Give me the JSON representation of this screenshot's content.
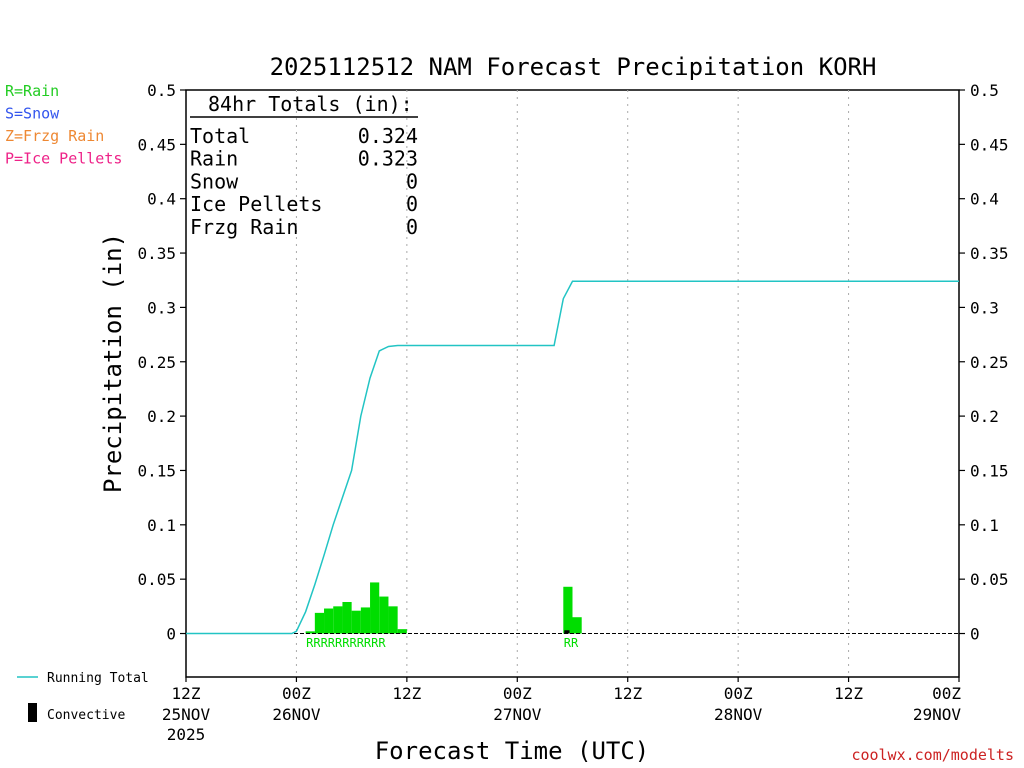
{
  "chart_data": {
    "type": "bar",
    "title": "2025112512 NAM Forecast Precipitation KORH",
    "xlabel": "Forecast Time (UTC)",
    "ylabel": "Precipitation (in)",
    "ylim": [
      -0.04,
      0.5
    ],
    "xlim_hours": [
      0,
      84
    ],
    "yticks": [
      "0",
      "0.05",
      "0.1",
      "0.15",
      "0.2",
      "0.25",
      "0.3",
      "0.35",
      "0.4",
      "0.45",
      "0.5"
    ],
    "yticks_values": [
      0,
      0.05,
      0.1,
      0.15,
      0.2,
      0.25,
      0.3,
      0.35,
      0.4,
      0.45,
      0.5
    ],
    "xticks": [
      {
        "hour": 0,
        "l1": "12Z",
        "l2": "25NOV",
        "l3": "2025"
      },
      {
        "hour": 12,
        "l1": "00Z",
        "l2": "26NOV",
        "l3": ""
      },
      {
        "hour": 24,
        "l1": "12Z",
        "l2": "",
        "l3": ""
      },
      {
        "hour": 36,
        "l1": "00Z",
        "l2": "27NOV",
        "l3": ""
      },
      {
        "hour": 48,
        "l1": "12Z",
        "l2": "",
        "l3": ""
      },
      {
        "hour": 60,
        "l1": "00Z",
        "l2": "28NOV",
        "l3": ""
      },
      {
        "hour": 72,
        "l1": "12Z",
        "l2": "",
        "l3": ""
      },
      {
        "hour": 84,
        "l1": "00Z",
        "l2": "29NOV",
        "l3": ""
      }
    ],
    "bars": [
      {
        "hour": 13,
        "value": 0.002,
        "convective": 0
      },
      {
        "hour": 14,
        "value": 0.019,
        "convective": 0
      },
      {
        "hour": 15,
        "value": 0.023,
        "convective": 0
      },
      {
        "hour": 16,
        "value": 0.025,
        "convective": 0
      },
      {
        "hour": 17,
        "value": 0.029,
        "convective": 0
      },
      {
        "hour": 18,
        "value": 0.021,
        "convective": 0
      },
      {
        "hour": 19,
        "value": 0.024,
        "convective": 0
      },
      {
        "hour": 20,
        "value": 0.047,
        "convective": 0
      },
      {
        "hour": 21,
        "value": 0.034,
        "convective": 0
      },
      {
        "hour": 22,
        "value": 0.025,
        "convective": 0
      },
      {
        "hour": 23,
        "value": 0.004,
        "convective": 0
      },
      {
        "hour": 41,
        "value": 0.043,
        "convective": 0.003
      },
      {
        "hour": 42,
        "value": 0.015,
        "convective": 0
      }
    ],
    "precip_type_labels": [
      {
        "hour": 13.5,
        "text": "RRRRRRRRRRR"
      },
      {
        "hour": 41.5,
        "text": "RR"
      }
    ],
    "running_total": {
      "name": "Running Total",
      "hours": [
        0,
        11.5,
        12,
        13,
        14,
        15,
        16,
        17,
        18,
        19,
        20,
        21,
        22,
        23,
        24,
        28,
        38,
        40,
        41,
        42,
        84
      ],
      "values": [
        0,
        0,
        0.002,
        0.02,
        0.045,
        0.072,
        0.1,
        0.125,
        0.15,
        0.2,
        0.235,
        0.26,
        0.264,
        0.265,
        0.265,
        0.265,
        0.265,
        0.265,
        0.308,
        0.324,
        0.324
      ]
    },
    "totals_box": {
      "header": "84hr Totals (in):",
      "rows": [
        {
          "label": "Total",
          "value": "0.324"
        },
        {
          "label": "Rain",
          "value": "0.323"
        },
        {
          "label": "Snow",
          "value": "0"
        },
        {
          "label": "Ice Pellets",
          "value": "0"
        },
        {
          "label": "Frzg Rain",
          "value": "0"
        }
      ]
    },
    "type_legend": [
      {
        "text": "R=Rain",
        "color": "#22cc22"
      },
      {
        "text": "S=Snow",
        "color": "#3355ee"
      },
      {
        "text": "Z=Frzg Rain",
        "color": "#ee8833"
      },
      {
        "text": "P=Ice Pellets",
        "color": "#ee2288"
      }
    ],
    "series_legend": {
      "running_total": "Running Total",
      "convective": "Convective"
    },
    "credit": "coolwx.com/modelts",
    "colors": {
      "rain_bar": "#00dd00",
      "running_total": "#22c4c4",
      "convective": "#000000",
      "credit": "#cc2222",
      "grid": "#aaaaaa"
    }
  }
}
